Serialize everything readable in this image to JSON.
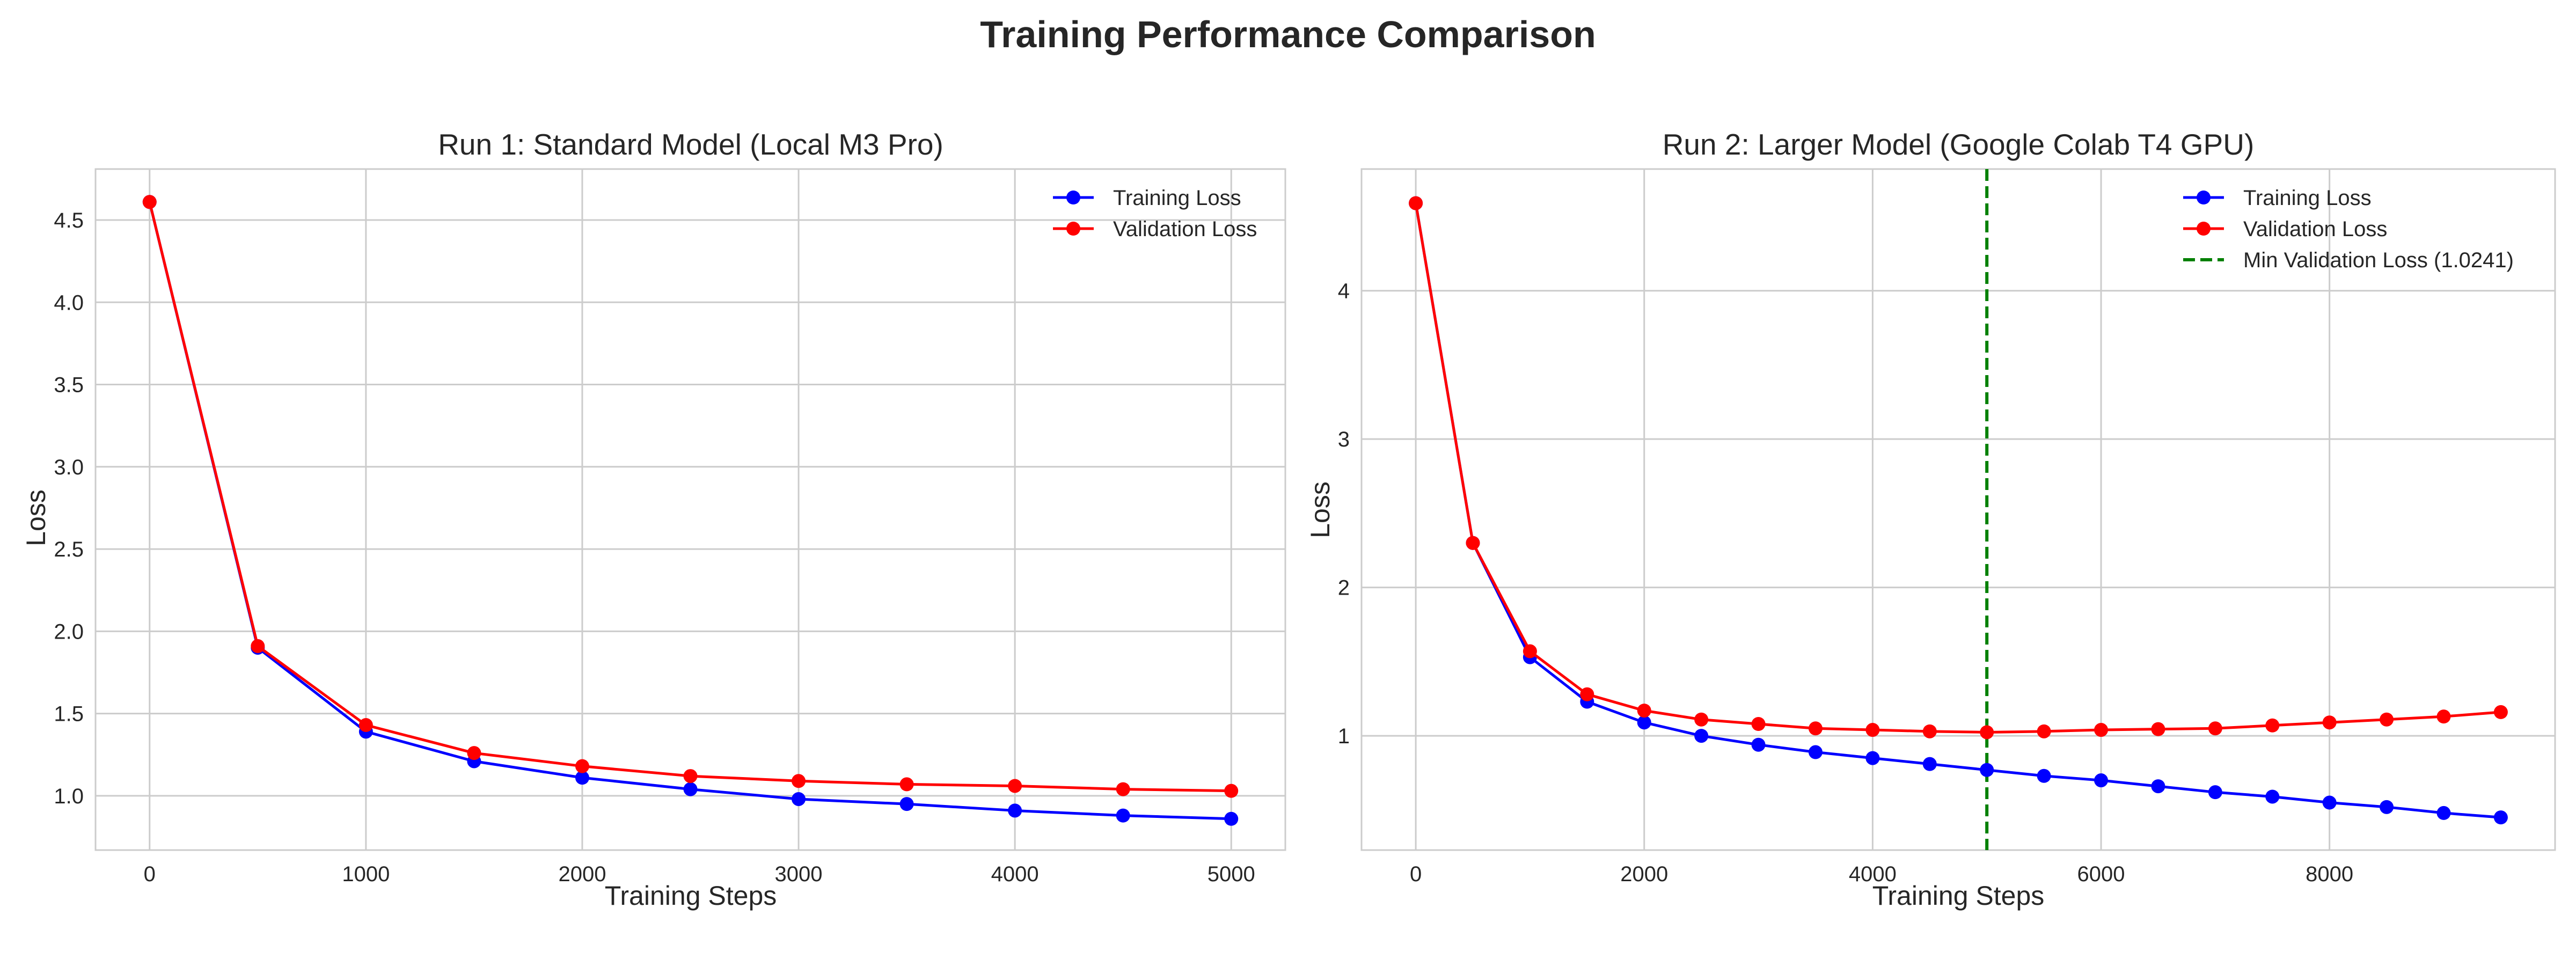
{
  "figure": {
    "title": "Training Performance Comparison"
  },
  "chart_data": [
    {
      "type": "line",
      "title": "Run 1: Standard Model (Local M3 Pro)",
      "xlabel": "Training Steps",
      "ylabel": "Loss",
      "xlim": [
        -250,
        5250
      ],
      "ylim": [
        0.67,
        4.81
      ],
      "xticks": [
        0,
        1000,
        2000,
        3000,
        4000,
        5000
      ],
      "yticks": [
        1.0,
        1.5,
        2.0,
        2.5,
        3.0,
        3.5,
        4.0,
        4.5
      ],
      "ytick_decimals": 1,
      "grid": true,
      "legend_position": "top-right",
      "x": [
        0,
        500,
        1000,
        1500,
        2000,
        2500,
        3000,
        3500,
        4000,
        4500,
        5000
      ],
      "series": [
        {
          "name": "Training Loss",
          "color": "#0000ff",
          "values": [
            4.61,
            1.9,
            1.39,
            1.21,
            1.11,
            1.04,
            0.98,
            0.95,
            0.91,
            0.88,
            0.86
          ]
        },
        {
          "name": "Validation Loss",
          "color": "#ff0000",
          "values": [
            4.61,
            1.91,
            1.43,
            1.26,
            1.18,
            1.12,
            1.09,
            1.07,
            1.06,
            1.04,
            1.03
          ]
        }
      ]
    },
    {
      "type": "line",
      "title": "Run 2: Larger Model (Google Colab T4 GPU)",
      "xlabel": "Training Steps",
      "ylabel": "Loss",
      "xlim": [
        -475,
        9975
      ],
      "ylim": [
        0.23,
        4.82
      ],
      "xticks": [
        0,
        2000,
        4000,
        6000,
        8000
      ],
      "yticks": [
        1,
        2,
        3,
        4
      ],
      "ytick_decimals": 0,
      "grid": true,
      "legend_position": "top-right",
      "x": [
        0,
        500,
        1000,
        1500,
        2000,
        2500,
        3000,
        3500,
        4000,
        4500,
        5000,
        5500,
        6000,
        6500,
        7000,
        7500,
        8000,
        8500,
        9000,
        9500
      ],
      "series": [
        {
          "name": "Training Loss",
          "color": "#0000ff",
          "values": [
            4.59,
            2.3,
            1.53,
            1.23,
            1.09,
            1.0,
            0.94,
            0.89,
            0.85,
            0.81,
            0.77,
            0.73,
            0.7,
            0.66,
            0.62,
            0.59,
            0.55,
            0.52,
            0.48,
            0.45
          ]
        },
        {
          "name": "Validation Loss",
          "color": "#ff0000",
          "values": [
            4.59,
            2.3,
            1.57,
            1.28,
            1.17,
            1.11,
            1.08,
            1.05,
            1.04,
            1.03,
            1.0241,
            1.03,
            1.04,
            1.045,
            1.05,
            1.07,
            1.09,
            1.11,
            1.13,
            1.16
          ]
        }
      ],
      "reference_line": {
        "orientation": "vertical",
        "x": 5000,
        "style": "dashed",
        "color": "#008000",
        "label": "Min Validation Loss (1.0241)"
      }
    }
  ]
}
